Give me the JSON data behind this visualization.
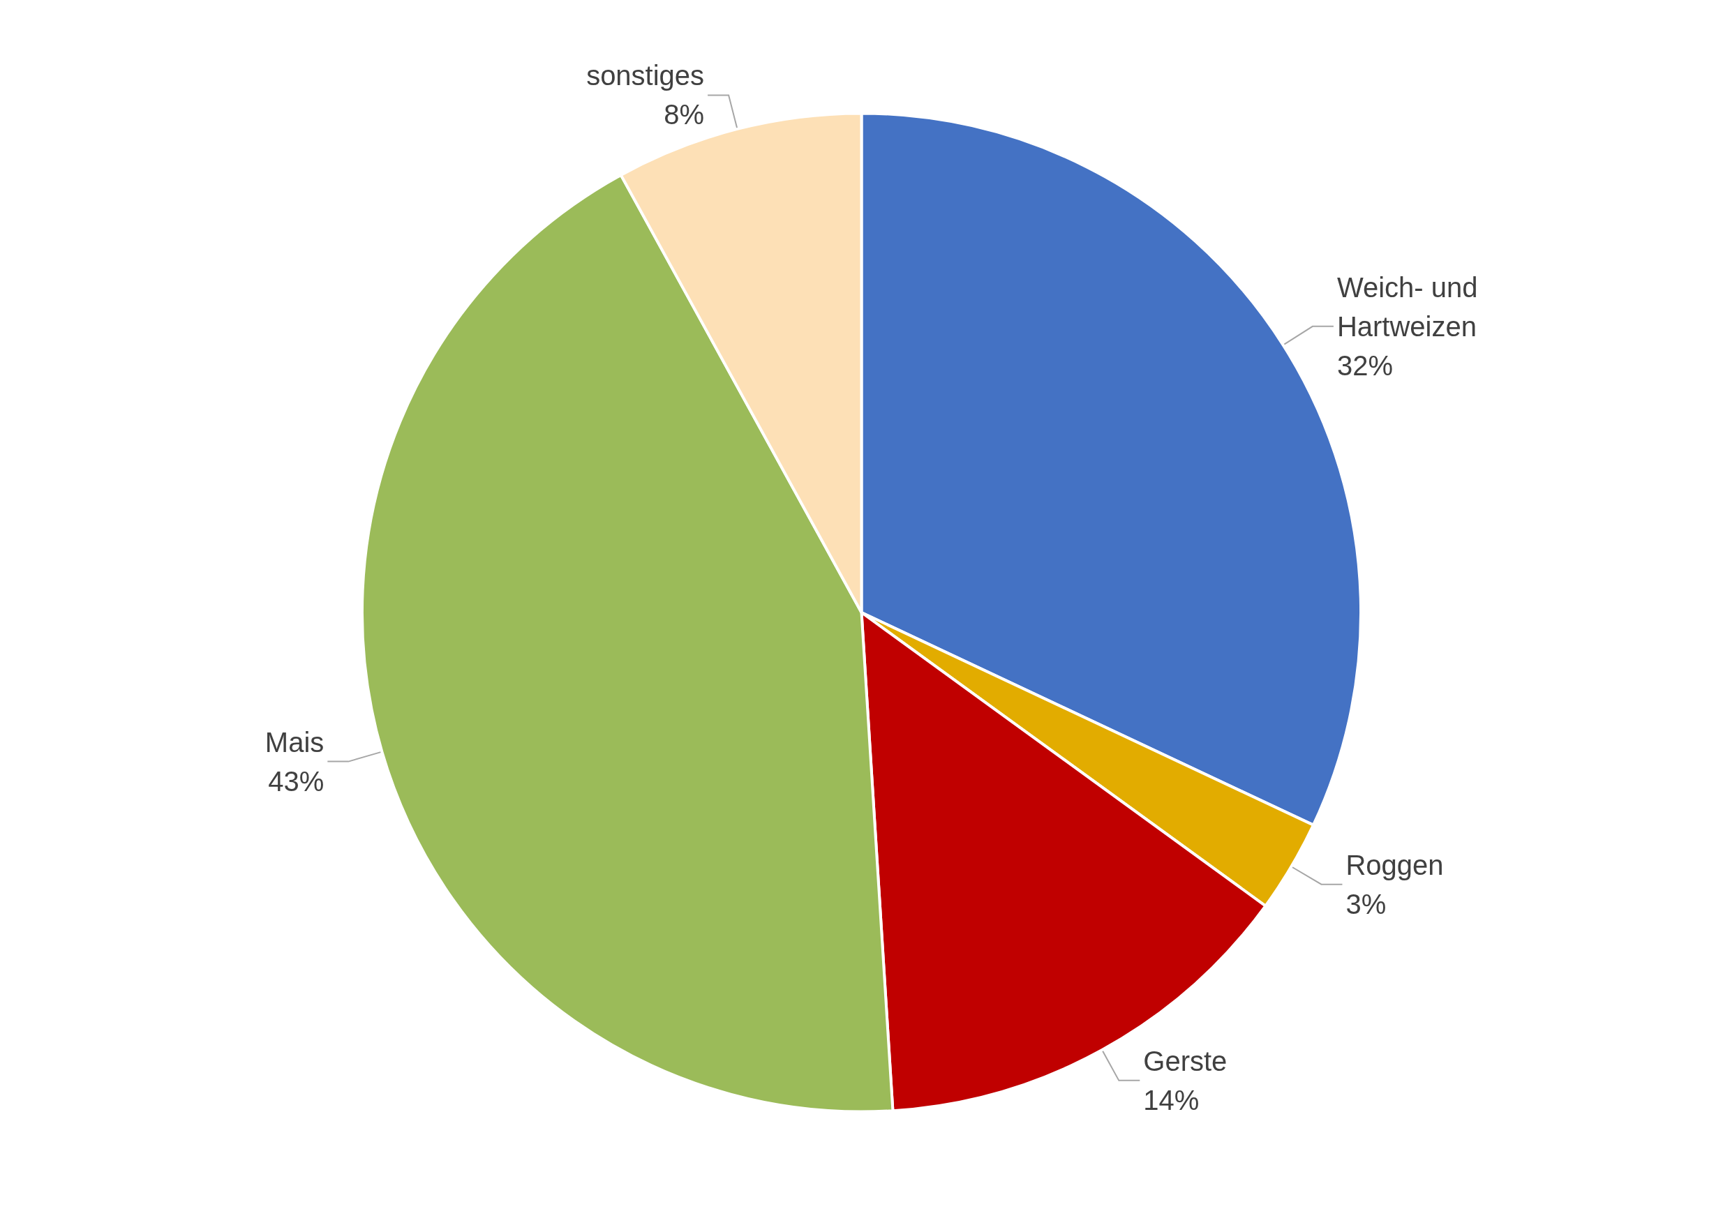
{
  "chart_data": {
    "type": "pie",
    "categories": [
      "Weich- und Hartweizen",
      "Roggen",
      "Gerste",
      "Mais",
      "sonstiges"
    ],
    "values": [
      32,
      3,
      14,
      43,
      8
    ],
    "value_labels": [
      "32%",
      "3%",
      "14%",
      "43%",
      "8%"
    ],
    "colors": [
      "#4472c4",
      "#e2ac00",
      "#c00000",
      "#9bbb59",
      "#fde0b6"
    ],
    "legend": false
  }
}
